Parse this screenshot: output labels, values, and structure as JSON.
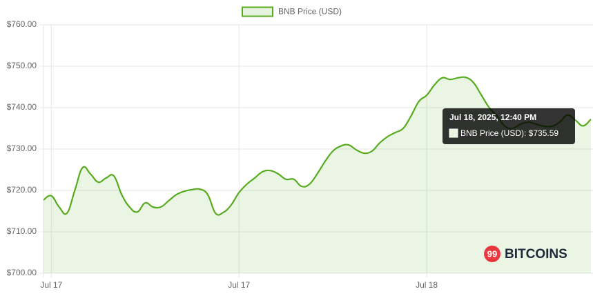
{
  "chart_data": {
    "type": "area",
    "categories": [
      null,
      "Jul 17",
      null,
      null,
      null,
      null,
      null,
      null,
      null,
      null,
      null,
      null,
      null,
      null,
      null,
      null,
      null,
      null,
      null,
      null,
      null,
      null,
      null,
      null,
      null,
      "Jul 17",
      null,
      null,
      null,
      null,
      null,
      null,
      null,
      null,
      null,
      null,
      null,
      null,
      null,
      null,
      null,
      null,
      null,
      null,
      null,
      null,
      null,
      null,
      null,
      "Jul 18",
      null,
      null,
      null,
      null,
      null,
      null,
      null,
      null,
      null,
      null,
      null,
      null,
      null,
      null,
      null,
      null,
      null,
      null,
      null,
      null,
      null
    ],
    "series": [
      {
        "name": "BNB Price (USD)",
        "color": "#56ab1e",
        "values": [
          717.7,
          718.7,
          716,
          714.5,
          720,
          725.5,
          724,
          722,
          723,
          723.5,
          719,
          716,
          714.8,
          717,
          716,
          716,
          717.5,
          719,
          719.8,
          720.2,
          720.3,
          719,
          714.5,
          714.7,
          716.5,
          719.5,
          721.5,
          723,
          724.5,
          724.8,
          724,
          722.7,
          722.7,
          721,
          721.5,
          724,
          727,
          729.5,
          730.7,
          731,
          729.8,
          729,
          729.5,
          731.5,
          733,
          734,
          735,
          738,
          741.5,
          743,
          745.5,
          747.2,
          746.8,
          747.2,
          747.3,
          746,
          743,
          740,
          738,
          735.5,
          735,
          736,
          736.5,
          736,
          735.5,
          735.5,
          736.5,
          738.2,
          737,
          735.6,
          737.2
        ]
      }
    ],
    "ylim": [
      700,
      760
    ],
    "yticks": [
      {
        "value": 700,
        "label": "$700.00"
      },
      {
        "value": 710,
        "label": "$710.00"
      },
      {
        "value": 720,
        "label": "$720.00"
      },
      {
        "value": 730,
        "label": "$730.00"
      },
      {
        "value": 740,
        "label": "$740.00"
      },
      {
        "value": 750,
        "label": "$750.00"
      },
      {
        "value": 760,
        "label": "$760.00"
      }
    ],
    "grid": true,
    "legend": "top",
    "tooltip": {
      "title": "Jul 18, 2025, 12:40 PM",
      "text": "BNB Price (USD): $735.59"
    },
    "watermark": {
      "badge": "99",
      "text": "BITCOINS"
    }
  }
}
